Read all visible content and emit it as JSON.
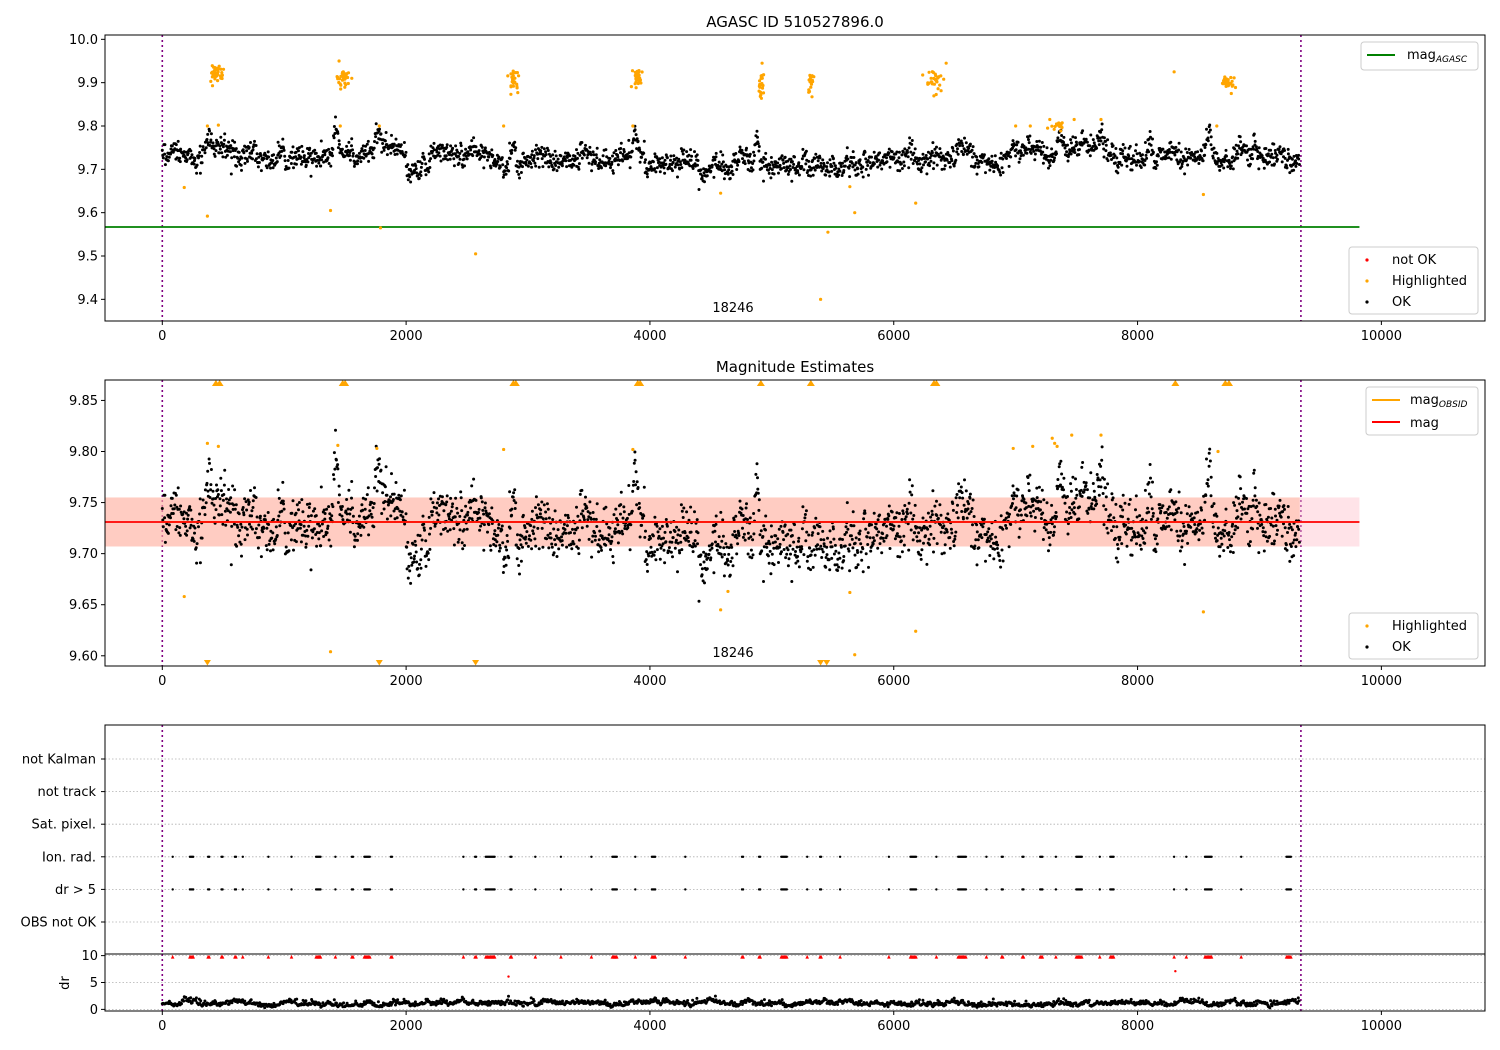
{
  "figure": {
    "background": "#ffffff"
  },
  "colors": {
    "ok": "#000000",
    "highlighted": "#ffa500",
    "not_ok": "#ff0000",
    "agasc": "#008000",
    "mag": "#ff0000",
    "mag_obsid": "#ffa500",
    "band_outer": "#ffc0cb",
    "band_inner": "#ffa07a",
    "obs_boundary": "#800080",
    "grid": "#b0b0b0"
  },
  "chart_data": [
    {
      "id": "top",
      "type": "scatter",
      "title": "AGASC ID 510527896.0",
      "xlim": [
        -470,
        10850
      ],
      "ylim": [
        9.35,
        10.01
      ],
      "xticks": [
        0,
        2000,
        4000,
        6000,
        8000,
        10000
      ],
      "yticks": [
        9.4,
        9.5,
        9.6,
        9.7,
        9.8,
        9.9,
        10.0
      ],
      "ytick_labels": [
        "9.4",
        "9.5",
        "9.6",
        "9.7",
        "9.8",
        "9.9",
        "10.0"
      ],
      "obs_boundaries": [
        0,
        9340
      ],
      "obsid_label": {
        "text": "18246",
        "x": 4670,
        "y": 9.37
      },
      "agasc_mag": {
        "value": 9.567,
        "x_range": [
          -470,
          9820
        ]
      },
      "ok_series": {
        "name": "OK",
        "x_range": [
          0,
          9330
        ],
        "count": 2300,
        "base": 9.728,
        "segments": [
          {
            "x0": 0,
            "x1": 250,
            "m": 9.747
          },
          {
            "x0": 250,
            "x1": 700,
            "m": 9.74
          },
          {
            "x0": 700,
            "x1": 1000,
            "m": 9.738
          },
          {
            "x0": 1000,
            "x1": 1200,
            "m": 9.712
          },
          {
            "x0": 1200,
            "x1": 1500,
            "m": 9.73
          },
          {
            "x0": 1500,
            "x1": 2000,
            "m": 9.738
          },
          {
            "x0": 2000,
            "x1": 2200,
            "m": 9.7
          },
          {
            "x0": 2200,
            "x1": 2600,
            "m": 9.735
          },
          {
            "x0": 2600,
            "x1": 2900,
            "m": 9.718
          },
          {
            "x0": 2900,
            "x1": 3900,
            "m": 9.725
          },
          {
            "x0": 3900,
            "x1": 4350,
            "m": 9.718
          },
          {
            "x0": 4350,
            "x1": 4700,
            "m": 9.7
          },
          {
            "x0": 4700,
            "x1": 5400,
            "m": 9.708
          },
          {
            "x0": 5400,
            "x1": 5750,
            "m": 9.7
          },
          {
            "x0": 5750,
            "x1": 6100,
            "m": 9.722
          },
          {
            "x0": 6100,
            "x1": 6900,
            "m": 9.73
          },
          {
            "x0": 6900,
            "x1": 7500,
            "m": 9.74
          },
          {
            "x0": 7500,
            "x1": 8500,
            "m": 9.733
          },
          {
            "x0": 8500,
            "x1": 9330,
            "m": 9.732
          }
        ],
        "spikes": [
          {
            "x": 380,
            "peak": 9.795
          },
          {
            "x": 1420,
            "peak": 9.79
          },
          {
            "x": 1770,
            "peak": 9.78
          },
          {
            "x": 2880,
            "peak": 9.785
          },
          {
            "x": 3880,
            "peak": 9.795
          },
          {
            "x": 4880,
            "peak": 9.785
          },
          {
            "x": 7360,
            "peak": 9.8
          },
          {
            "x": 7700,
            "peak": 9.79
          },
          {
            "x": 8100,
            "peak": 9.78
          },
          {
            "x": 8580,
            "peak": 9.79
          },
          {
            "x": 8960,
            "peak": 9.78
          }
        ]
      },
      "highlighted_series": {
        "name": "Highlighted",
        "clusters": [
          {
            "x": 440,
            "y": 9.92,
            "n": 40,
            "sx": 25,
            "sy": 0.012
          },
          {
            "x": 1480,
            "y": 9.91,
            "n": 30,
            "sx": 25,
            "sy": 0.012
          },
          {
            "x": 2880,
            "y": 9.905,
            "n": 25,
            "sx": 20,
            "sy": 0.012
          },
          {
            "x": 3900,
            "y": 9.91,
            "n": 30,
            "sx": 20,
            "sy": 0.012
          },
          {
            "x": 4910,
            "y": 9.9,
            "n": 22,
            "sx": 12,
            "sy": 0.018
          },
          {
            "x": 5320,
            "y": 9.905,
            "n": 18,
            "sx": 10,
            "sy": 0.015
          },
          {
            "x": 6340,
            "y": 9.905,
            "n": 30,
            "sx": 30,
            "sy": 0.012
          },
          {
            "x": 8740,
            "y": 9.9,
            "n": 30,
            "sx": 25,
            "sy": 0.01
          },
          {
            "x": 7340,
            "y": 9.8,
            "n": 15,
            "sx": 30,
            "sy": 0.005
          }
        ],
        "points": [
          [
            370,
            9.8
          ],
          [
            460,
            9.802
          ],
          [
            1380,
            9.605
          ],
          [
            1460,
            9.8
          ],
          [
            1780,
            9.8
          ],
          [
            1790,
            9.565
          ],
          [
            180,
            9.658
          ],
          [
            370,
            9.592
          ],
          [
            2570,
            9.505
          ],
          [
            2800,
            9.8
          ],
          [
            3860,
            9.8
          ],
          [
            4580,
            9.645
          ],
          [
            5400,
            9.4
          ],
          [
            5460,
            9.555
          ],
          [
            5640,
            9.66
          ],
          [
            5680,
            9.6
          ],
          [
            6180,
            9.622
          ],
          [
            6430,
            9.945
          ],
          [
            7000,
            9.8
          ],
          [
            7120,
            9.8
          ],
          [
            7280,
            9.815
          ],
          [
            7480,
            9.815
          ],
          [
            7700,
            9.815
          ],
          [
            8300,
            9.925
          ],
          [
            8540,
            9.642
          ],
          [
            8650,
            9.8
          ],
          [
            4920,
            9.945
          ],
          [
            1450,
            9.95
          ]
        ]
      },
      "not_ok_series": {
        "name": "not OK",
        "points": []
      },
      "legends": [
        {
          "position": "top-right",
          "entries": [
            {
              "label": "mag",
              "sub": "AGASC",
              "kind": "line",
              "color": "#008000"
            }
          ]
        },
        {
          "position": "bottom-right",
          "entries": [
            {
              "label": "not OK",
              "kind": "dot",
              "color": "#ff0000"
            },
            {
              "label": "Highlighted",
              "kind": "dot",
              "color": "#ffa500"
            },
            {
              "label": "OK",
              "kind": "dot",
              "color": "#000000"
            }
          ]
        }
      ]
    },
    {
      "id": "middle",
      "type": "scatter",
      "title": "Magnitude Estimates",
      "xlim": [
        -470,
        10850
      ],
      "ylim": [
        9.59,
        9.87
      ],
      "xticks": [
        0,
        2000,
        4000,
        6000,
        8000,
        10000
      ],
      "yticks": [
        9.6,
        9.65,
        9.7,
        9.75,
        9.8,
        9.85
      ],
      "ytick_labels": [
        "9.60",
        "9.65",
        "9.70",
        "9.75",
        "9.80",
        "9.85"
      ],
      "obs_boundaries": [
        0,
        9340
      ],
      "obsid_label": {
        "text": "18246",
        "x": 4670,
        "y": 9.595
      },
      "mag_line": {
        "value": 9.731,
        "x_range": [
          -470,
          9820
        ]
      },
      "band_outer": {
        "y0": 9.707,
        "y1": 9.755,
        "x_range": [
          -470,
          9820
        ]
      },
      "band_inner": {
        "y0": 9.707,
        "y1": 9.755,
        "x_range": [
          -470,
          9330
        ]
      },
      "mag_obsid": {
        "value": 9.731,
        "x_range": [
          0,
          9330
        ]
      },
      "upper_markers": [
        440,
        470,
        1480,
        1500,
        2880,
        2900,
        3900,
        3920,
        4910,
        5320,
        6330,
        6350,
        8310,
        8720,
        8750
      ],
      "lower_markers": [
        370,
        1780,
        2570,
        5400,
        5450
      ],
      "highlighted_points": [
        [
          370,
          9.808
        ],
        [
          460,
          9.805
        ],
        [
          1380,
          9.604
        ],
        [
          1440,
          9.806
        ],
        [
          1760,
          9.803
        ],
        [
          180,
          9.658
        ],
        [
          2800,
          9.802
        ],
        [
          3860,
          9.802
        ],
        [
          4580,
          9.645
        ],
        [
          4640,
          9.663
        ],
        [
          5640,
          9.662
        ],
        [
          5680,
          9.601
        ],
        [
          6180,
          9.624
        ],
        [
          6980,
          9.803
        ],
        [
          7140,
          9.805
        ],
        [
          7300,
          9.813
        ],
        [
          7320,
          9.808
        ],
        [
          7340,
          9.805
        ],
        [
          7460,
          9.816
        ],
        [
          7700,
          9.816
        ],
        [
          8540,
          9.643
        ],
        [
          8660,
          9.8
        ]
      ],
      "legends": [
        {
          "position": "top-right",
          "entries": [
            {
              "label": "mag",
              "sub": "OBSID",
              "kind": "line",
              "color": "#ffa500"
            },
            {
              "label": "mag",
              "kind": "line",
              "color": "#ff0000"
            }
          ]
        },
        {
          "position": "bottom-right",
          "entries": [
            {
              "label": "Highlighted",
              "kind": "dot",
              "color": "#ffa500"
            },
            {
              "label": "OK",
              "kind": "dot",
              "color": "#000000"
            }
          ]
        }
      ]
    },
    {
      "id": "flags",
      "type": "scatter",
      "xlim": [
        -470,
        10850
      ],
      "ylim": [
        0,
        7
      ],
      "categories": [
        "OBS not OK",
        "dr > 5",
        "Ion. rad.",
        "Sat. pixel.",
        "not track",
        "not Kalman"
      ],
      "obs_boundaries": [
        0,
        9340
      ],
      "flag_events": {
        "rows": [
          "dr > 5",
          "Ion. rad."
        ],
        "clusters": [
          [
            85,
            1
          ],
          [
            240,
            4
          ],
          [
            380,
            2
          ],
          [
            490,
            2
          ],
          [
            600,
            2
          ],
          [
            660,
            1
          ],
          [
            870,
            1
          ],
          [
            1060,
            1
          ],
          [
            1280,
            5
          ],
          [
            1420,
            1
          ],
          [
            1560,
            2
          ],
          [
            1680,
            6
          ],
          [
            1880,
            2
          ],
          [
            2470,
            1
          ],
          [
            2570,
            2
          ],
          [
            2690,
            9
          ],
          [
            2860,
            2
          ],
          [
            3060,
            1
          ],
          [
            3270,
            1
          ],
          [
            3520,
            1
          ],
          [
            3710,
            5
          ],
          [
            3880,
            1
          ],
          [
            4030,
            4
          ],
          [
            4290,
            1
          ],
          [
            4760,
            2
          ],
          [
            4900,
            2
          ],
          [
            5100,
            6
          ],
          [
            5290,
            1
          ],
          [
            5400,
            2
          ],
          [
            5560,
            1
          ],
          [
            5960,
            1
          ],
          [
            6160,
            6
          ],
          [
            6350,
            1
          ],
          [
            6560,
            8
          ],
          [
            6760,
            1
          ],
          [
            6890,
            2
          ],
          [
            7060,
            2
          ],
          [
            7210,
            3
          ],
          [
            7330,
            1
          ],
          [
            7520,
            6
          ],
          [
            7690,
            1
          ],
          [
            7790,
            4
          ],
          [
            8300,
            1
          ],
          [
            8400,
            1
          ],
          [
            8580,
            7
          ],
          [
            8850,
            1
          ],
          [
            9240,
            5
          ]
        ]
      }
    },
    {
      "id": "dr",
      "type": "scatter",
      "ylabel": "dr",
      "xlim": [
        -470,
        10850
      ],
      "ylim": [
        -0.3,
        10.3
      ],
      "xticks": [
        0,
        2000,
        4000,
        6000,
        8000,
        10000
      ],
      "yticks": [
        0,
        5,
        10
      ],
      "ytick_labels": [
        "0",
        "5",
        "10"
      ],
      "obs_boundaries": [
        0,
        9340
      ],
      "dr_series": {
        "x_range": [
          0,
          9330
        ],
        "count": 1600,
        "base": 0.9
      },
      "outliers": [
        [
          2840,
          6.1
        ],
        [
          8310,
          7.1
        ]
      ]
    }
  ]
}
